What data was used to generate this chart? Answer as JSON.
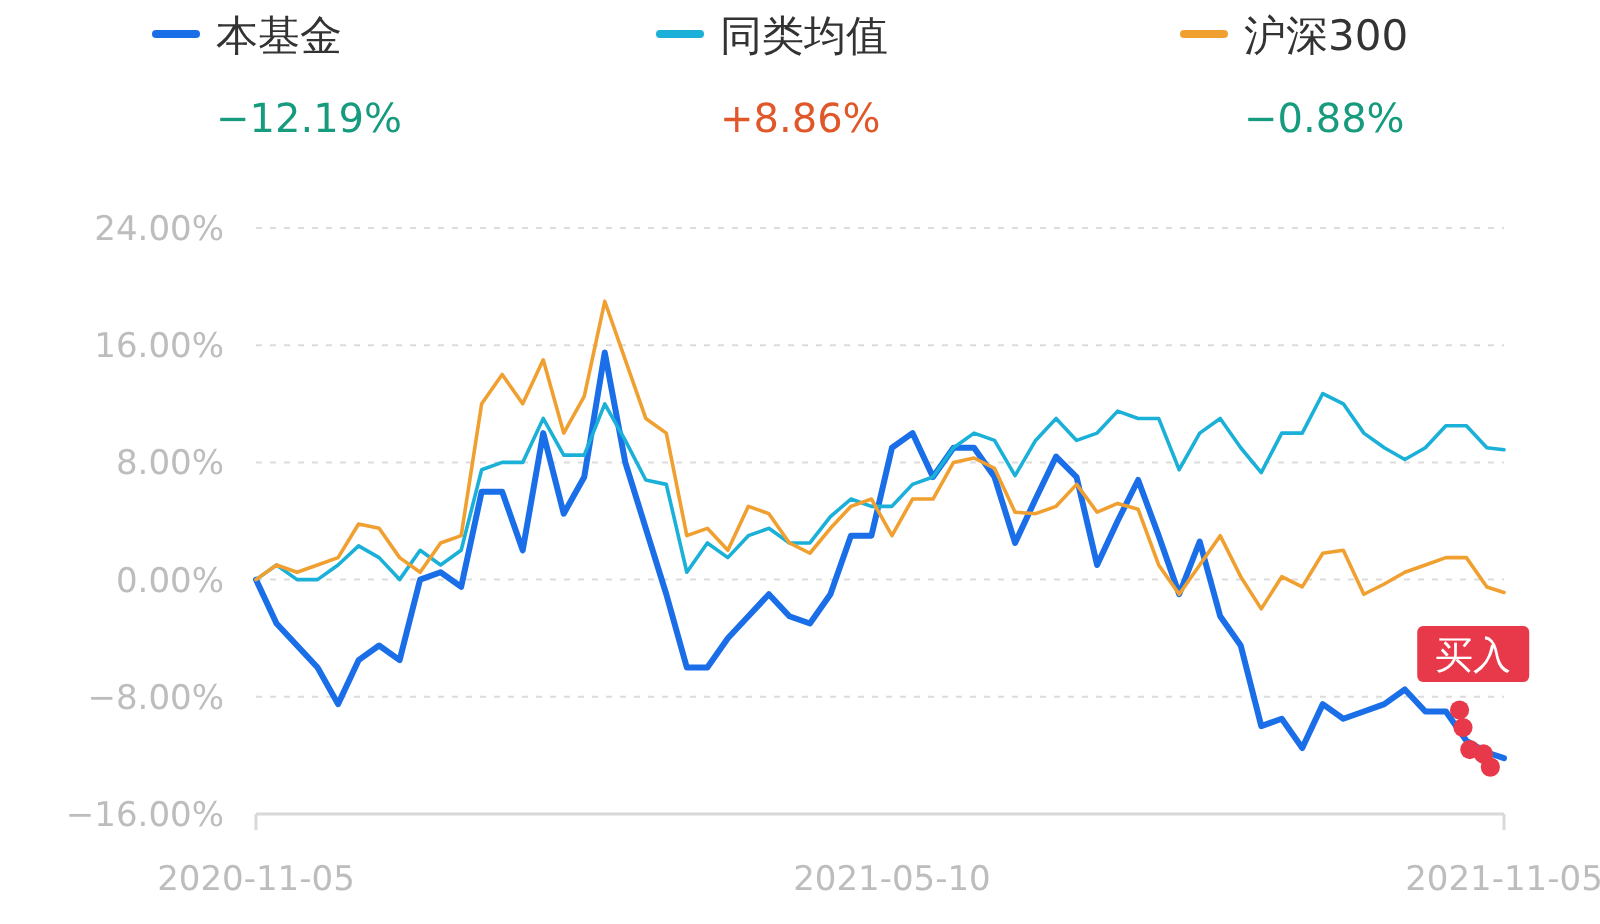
{
  "chart_data": {
    "type": "line",
    "grid": "y",
    "legend": "top",
    "line_style": "solid",
    "marker": "none",
    "x": [
      "2020-11-05",
      "2020-11-11",
      "2020-11-17",
      "2020-11-23",
      "2020-11-29",
      "2020-12-05",
      "2020-12-11",
      "2020-12-17",
      "2020-12-23",
      "2020-12-29",
      "2021-01-04",
      "2021-01-10",
      "2021-01-16",
      "2021-01-22",
      "2021-01-28",
      "2021-02-03",
      "2021-02-09",
      "2021-02-15",
      "2021-02-21",
      "2021-02-27",
      "2021-03-05",
      "2021-03-11",
      "2021-03-17",
      "2021-03-23",
      "2021-03-29",
      "2021-04-04",
      "2021-04-10",
      "2021-04-16",
      "2021-04-22",
      "2021-04-28",
      "2021-05-04",
      "2021-05-10",
      "2021-05-16",
      "2021-05-22",
      "2021-05-28",
      "2021-06-03",
      "2021-06-09",
      "2021-06-15",
      "2021-06-21",
      "2021-06-27",
      "2021-07-03",
      "2021-07-09",
      "2021-07-15",
      "2021-07-21",
      "2021-07-27",
      "2021-08-02",
      "2021-08-08",
      "2021-08-14",
      "2021-08-20",
      "2021-08-26",
      "2021-09-01",
      "2021-09-07",
      "2021-09-13",
      "2021-09-19",
      "2021-09-25",
      "2021-10-01",
      "2021-10-07",
      "2021-10-13",
      "2021-10-19",
      "2021-10-25",
      "2021-10-31",
      "2021-11-05"
    ],
    "xlim": [
      "2020-11-05",
      "2021-11-05"
    ],
    "xticks": [
      "2020-11-05",
      "2021-05-10",
      "2021-11-05"
    ],
    "ylim": [
      -16,
      24
    ],
    "yticks": [
      {
        "value": -16,
        "label": "−16.00%"
      },
      {
        "value": -8,
        "label": "−8.00%"
      },
      {
        "value": 0,
        "label": "0.00%"
      },
      {
        "value": 8,
        "label": "8.00%"
      },
      {
        "value": 16,
        "label": "16.00%"
      },
      {
        "value": 24,
        "label": "24.00%"
      }
    ],
    "series": [
      {
        "name": "本基金",
        "color": "#1a6fe8",
        "values": [
          0,
          -3,
          -4.5,
          -6,
          -8.5,
          -5.5,
          -4.5,
          -5.5,
          0,
          0.5,
          -0.5,
          6,
          6,
          2,
          10,
          4.5,
          7,
          15.5,
          8,
          3.5,
          -1,
          -6,
          -6,
          -4,
          -2.5,
          -1,
          -2.5,
          -3,
          -1,
          3,
          3,
          9,
          10,
          7,
          9,
          9,
          7,
          2.5,
          5.5,
          8.4,
          7,
          1,
          4,
          6.8,
          3,
          -1,
          2.6,
          -2.5,
          -4.5,
          -10,
          -9.5,
          -11.5,
          -8.5,
          -9.5,
          -9,
          -8.5,
          -7.5,
          -9,
          -9,
          -11,
          -11.8,
          -12.19
        ]
      },
      {
        "name": "同类均值",
        "color": "#1ab0d8",
        "values": [
          0,
          1,
          0,
          0,
          1,
          2.3,
          1.5,
          0,
          2,
          1,
          2,
          7.5,
          8,
          8,
          11,
          8.5,
          8.5,
          12,
          9.5,
          6.8,
          6.5,
          0.5,
          2.5,
          1.5,
          3,
          3.5,
          2.5,
          2.5,
          4.3,
          5.5,
          5,
          5,
          6.5,
          7,
          9,
          10,
          9.5,
          7.1,
          9.5,
          11,
          9.5,
          10,
          11.5,
          11,
          11,
          7.5,
          10,
          11,
          9,
          7.3,
          10,
          10,
          12.7,
          12,
          10,
          9,
          8.2,
          9,
          10.5,
          10.5,
          9,
          8.86
        ]
      },
      {
        "name": "沪深300",
        "color": "#f0a030",
        "values": [
          0,
          1,
          0.5,
          1,
          1.5,
          3.8,
          3.5,
          1.5,
          0.5,
          2.5,
          3,
          12,
          14,
          12,
          15,
          10,
          12.5,
          19,
          15,
          11,
          10,
          3,
          3.5,
          2,
          5,
          4.5,
          2.5,
          1.8,
          3.5,
          5,
          5.5,
          3,
          5.5,
          5.5,
          8,
          8.3,
          7.6,
          4.6,
          4.5,
          5,
          6.5,
          4.6,
          5.2,
          4.8,
          1,
          -1,
          1,
          3,
          0.2,
          -2,
          0.2,
          -0.5,
          1.8,
          2,
          -1,
          -0.3,
          0.5,
          1,
          1.5,
          1.5,
          -0.5,
          -0.88
        ]
      },
      {
        "name": "买入",
        "type": "scatter",
        "marker": "circle",
        "color": "#e8394a",
        "x": [
          "2021-10-23",
          "2021-10-24",
          "2021-10-26",
          "2021-10-30",
          "2021-11-01"
        ],
        "values": [
          -8.9,
          -10.1,
          -11.6,
          -11.9,
          -12.8
        ]
      }
    ],
    "annotations": [
      "−12.19%",
      "+8.86%",
      "−0.88%"
    ]
  }
}
